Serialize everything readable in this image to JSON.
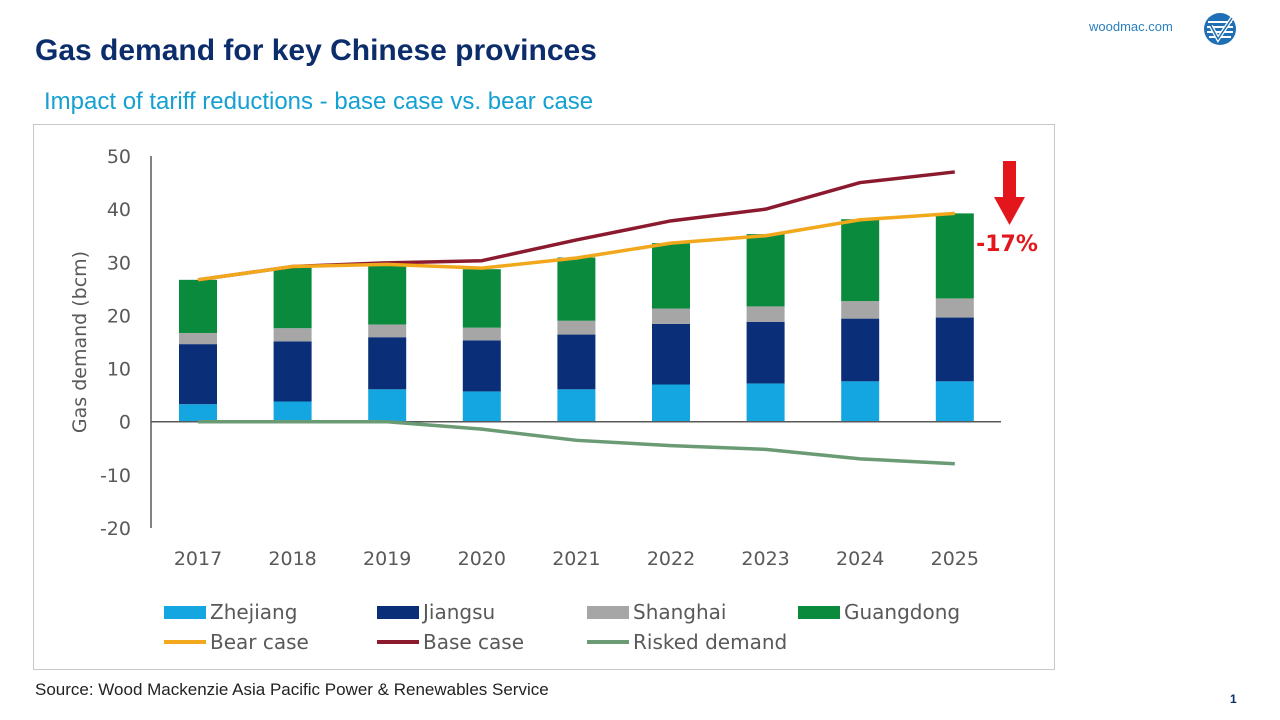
{
  "header": {
    "title": "Gas demand for key Chinese provinces",
    "subtitle": "Impact of tariff reductions - base case vs. bear case",
    "brand": "woodmac.com",
    "logo_icon": "woodmac-logo-icon"
  },
  "footer": {
    "source": "Source: Wood Mackenzie Asia Pacific Power & Renewables Service",
    "page_number": "1"
  },
  "chart_data": {
    "type": "bar",
    "stacked": true,
    "title": "",
    "xlabel": "",
    "ylabel": "Gas demand (bcm)",
    "ylim": [
      -20,
      50
    ],
    "yticks": [
      "50",
      "40",
      "30",
      "20",
      "10",
      "0",
      "-10",
      "-20"
    ],
    "categories": [
      "2017",
      "2018",
      "2019",
      "2020",
      "2021",
      "2022",
      "2023",
      "2024",
      "2025"
    ],
    "series": [
      {
        "name": "Zhejiang",
        "kind": "bar",
        "color": "#14a6e0",
        "values": [
          3.3,
          3.8,
          6.1,
          5.7,
          6.1,
          7.0,
          7.2,
          7.6,
          7.6
        ]
      },
      {
        "name": "Jiangsu",
        "kind": "bar",
        "color": "#0a2f78",
        "values": [
          11.3,
          11.3,
          9.8,
          9.6,
          10.3,
          11.4,
          11.6,
          11.8,
          12.0
        ]
      },
      {
        "name": "Shanghai",
        "kind": "bar",
        "color": "#a6a6a6",
        "values": [
          2.1,
          2.5,
          2.4,
          2.4,
          2.6,
          2.9,
          2.9,
          3.3,
          3.6
        ]
      },
      {
        "name": "Guangdong",
        "kind": "bar",
        "color": "#0a8a3c",
        "values": [
          10.0,
          11.4,
          11.3,
          11.0,
          11.9,
          12.3,
          13.6,
          15.4,
          16.0
        ]
      },
      {
        "name": "Bear case",
        "kind": "line",
        "color": "#f2a81d",
        "values": [
          26.7,
          29.2,
          29.6,
          28.9,
          30.8,
          33.6,
          35.0,
          38.0,
          39.2
        ]
      },
      {
        "name": "Base case",
        "kind": "line",
        "color": "#8c1a2e",
        "values": [
          26.7,
          29.2,
          29.9,
          30.3,
          34.2,
          37.8,
          40.0,
          45.0,
          47.0
        ]
      },
      {
        "name": "Risked demand",
        "kind": "line",
        "color": "#6b9b74",
        "values": [
          0.0,
          0.0,
          0.0,
          -1.4,
          -3.5,
          -4.5,
          -5.2,
          -7.0,
          -7.9
        ]
      }
    ],
    "annotation": {
      "text": "-17%",
      "color": "#e3171b",
      "arrow": "down-arrow-icon"
    },
    "grid": false,
    "legend_position": "bottom"
  }
}
